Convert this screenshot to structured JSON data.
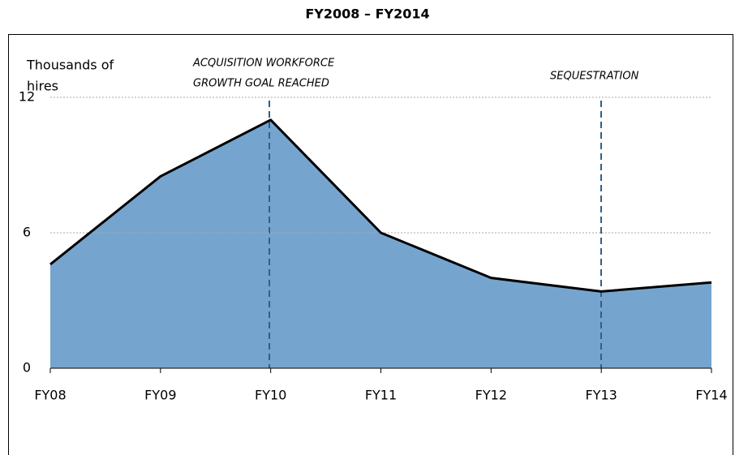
{
  "chart_data": {
    "type": "area",
    "title": "FY2008 – FY2014",
    "y_label": [
      "Thousands of",
      "hires"
    ],
    "annotations": [
      [
        "ACQUISITION WORKFORCE",
        "GROWTH GOAL REACHED"
      ],
      [
        "SEQUESTRATION"
      ]
    ],
    "categories": [
      "FY08",
      "FY09",
      "FY10",
      "FY11",
      "FY12",
      "FY13",
      "FY14"
    ],
    "values": [
      4.6,
      8.5,
      11.0,
      6.0,
      4.0,
      3.4,
      3.8
    ],
    "color": "#75a5cf",
    "line_color": "#000000",
    "ylim": [
      0,
      12
    ],
    "yticks": [
      0,
      6,
      12
    ],
    "grid": true
  }
}
